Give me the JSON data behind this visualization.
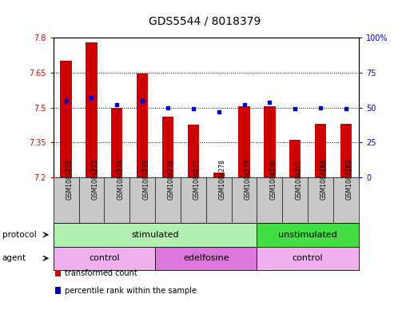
{
  "title": "GDS5544 / 8018379",
  "samples": [
    "GSM1084272",
    "GSM1084273",
    "GSM1084274",
    "GSM1084275",
    "GSM1084276",
    "GSM1084277",
    "GSM1084278",
    "GSM1084279",
    "GSM1084260",
    "GSM1084261",
    "GSM1084262",
    "GSM1084263"
  ],
  "bar_values": [
    7.7,
    7.78,
    7.5,
    7.645,
    7.46,
    7.425,
    7.22,
    7.505,
    7.505,
    7.36,
    7.43,
    7.43
  ],
  "percentile_values": [
    55,
    57,
    52,
    55,
    50,
    49,
    47,
    52,
    54,
    49,
    50,
    49
  ],
  "bar_color": "#cc0000",
  "percentile_color": "#0000cc",
  "y_min": 7.2,
  "y_max": 7.8,
  "y_ticks": [
    7.2,
    7.35,
    7.5,
    7.65,
    7.8
  ],
  "y_tick_labels": [
    "7.2",
    "7.35",
    "7.5",
    "7.65",
    "7.8"
  ],
  "y2_ticks": [
    0,
    25,
    50,
    75,
    100
  ],
  "y2_tick_labels": [
    "0",
    "25",
    "50",
    "75",
    "100%"
  ],
  "protocol_groups": [
    {
      "label": "stimulated",
      "start": 0,
      "end": 8,
      "color": "#b2f0b2"
    },
    {
      "label": "unstimulated",
      "start": 8,
      "end": 12,
      "color": "#44dd44"
    }
  ],
  "agent_groups": [
    {
      "label": "control",
      "start": 0,
      "end": 4,
      "color": "#f0b0f0"
    },
    {
      "label": "edelfosine",
      "start": 4,
      "end": 8,
      "color": "#dd77dd"
    },
    {
      "label": "control",
      "start": 8,
      "end": 12,
      "color": "#f0b0f0"
    }
  ],
  "legend_items": [
    {
      "label": "transformed count",
      "color": "#cc0000"
    },
    {
      "label": "percentile rank within the sample",
      "color": "#0000cc"
    }
  ],
  "bar_width": 0.45,
  "tick_label_fontsize": 7,
  "title_fontsize": 10,
  "background_color": "#ffffff",
  "left_label_color": "#cc0000",
  "right_label_color": "#0000cc",
  "n_samples": 12
}
